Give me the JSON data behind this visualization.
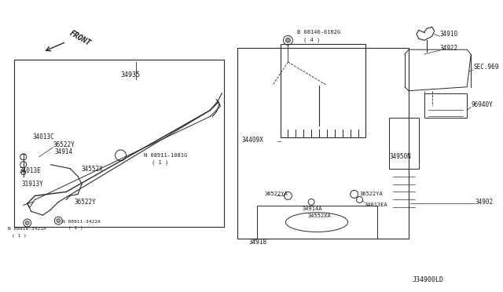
{
  "bg_color": "#ffffff",
  "line_color": "#2a2a2a",
  "text_color": "#1a1a1a",
  "fig_width": 6.4,
  "fig_height": 3.72,
  "diagram_id": "J34900LD",
  "labels": {
    "front_arrow": "FRONT",
    "part_34935": "34935",
    "part_34013C": "34013C",
    "part_36522Y_1": "36522Y",
    "part_34914": "34914",
    "part_34013E": "34013E",
    "part_34552X": "34552X",
    "part_31913Y": "31913Y",
    "part_36522Y_2": "36522Y",
    "part_08911_1081G": "N 08911-1081G\n(1)",
    "part_08916_3421A": "N 08916-3421A\n(1)",
    "part_08911_3422A": "N 08911-3422A\n(1)",
    "part_08146_6162G": "B 08146-6162G\n(4)",
    "part_34409X": "34409X",
    "part_36522YA_1": "36522YA",
    "part_34914A": "34914A",
    "part_34552XA": "34552XA",
    "part_36522YA_2": "36522YA",
    "part_34013EA": "34013EA",
    "part_34950N": "34950N",
    "part_34902": "34902",
    "part_34918": "34918",
    "part_34910": "34910",
    "part_34922": "34922",
    "part_SEC969": "SEC.969",
    "part_96940Y": "96940Y"
  }
}
